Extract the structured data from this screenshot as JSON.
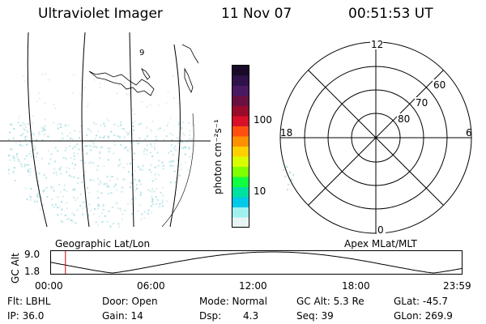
{
  "header": {
    "instrument": "Ultraviolet Imager",
    "date": "11 Nov 07",
    "time": "00:51:53 UT"
  },
  "colorbar": {
    "unit_label": "photon cm⁻²s⁻¹",
    "ticks": [
      "100",
      "10"
    ],
    "colors": [
      "#1a0a2a",
      "#30124a",
      "#4a1a60",
      "#6a1040",
      "#9a0a2a",
      "#d8102a",
      "#ff5010",
      "#ff9000",
      "#ffd000",
      "#d8ff00",
      "#80ff00",
      "#10ff40",
      "#00e0a0",
      "#00c8e8",
      "#a0f0f0",
      "#e8f4f4"
    ]
  },
  "geo_panel": {
    "caption": "Geographic Lat/Lon",
    "lon_marker": "9"
  },
  "polar_panel": {
    "caption": "Apex MLat/MLT",
    "mlt_labels": {
      "top": "12",
      "left": "18",
      "right": "6",
      "bottom": "0"
    },
    "lat_labels": [
      "60",
      "70",
      "80"
    ]
  },
  "altitude_plot": {
    "ylabel": "GC Alt",
    "yticks": [
      "9.0",
      "1.8"
    ],
    "xticks": [
      "00:00",
      "06:00",
      "12:00",
      "18:00",
      "23:59"
    ],
    "current_time_fraction": 0.036,
    "marker_color": "#d00000"
  },
  "info": {
    "row1": {
      "flt": "Flt: LBHL",
      "door": "Door: Open",
      "mode": "Mode: Normal",
      "gcalt": "GC Alt: 5.3 Re",
      "glat": "GLat: -45.7"
    },
    "row2": {
      "ip": "IP: 36.0",
      "gain": "Gain: 14",
      "dsp_label": "Dsp:",
      "dsp_value": "4.3",
      "seq": "Seq: 39",
      "glon": "GLon: 269.9"
    }
  }
}
